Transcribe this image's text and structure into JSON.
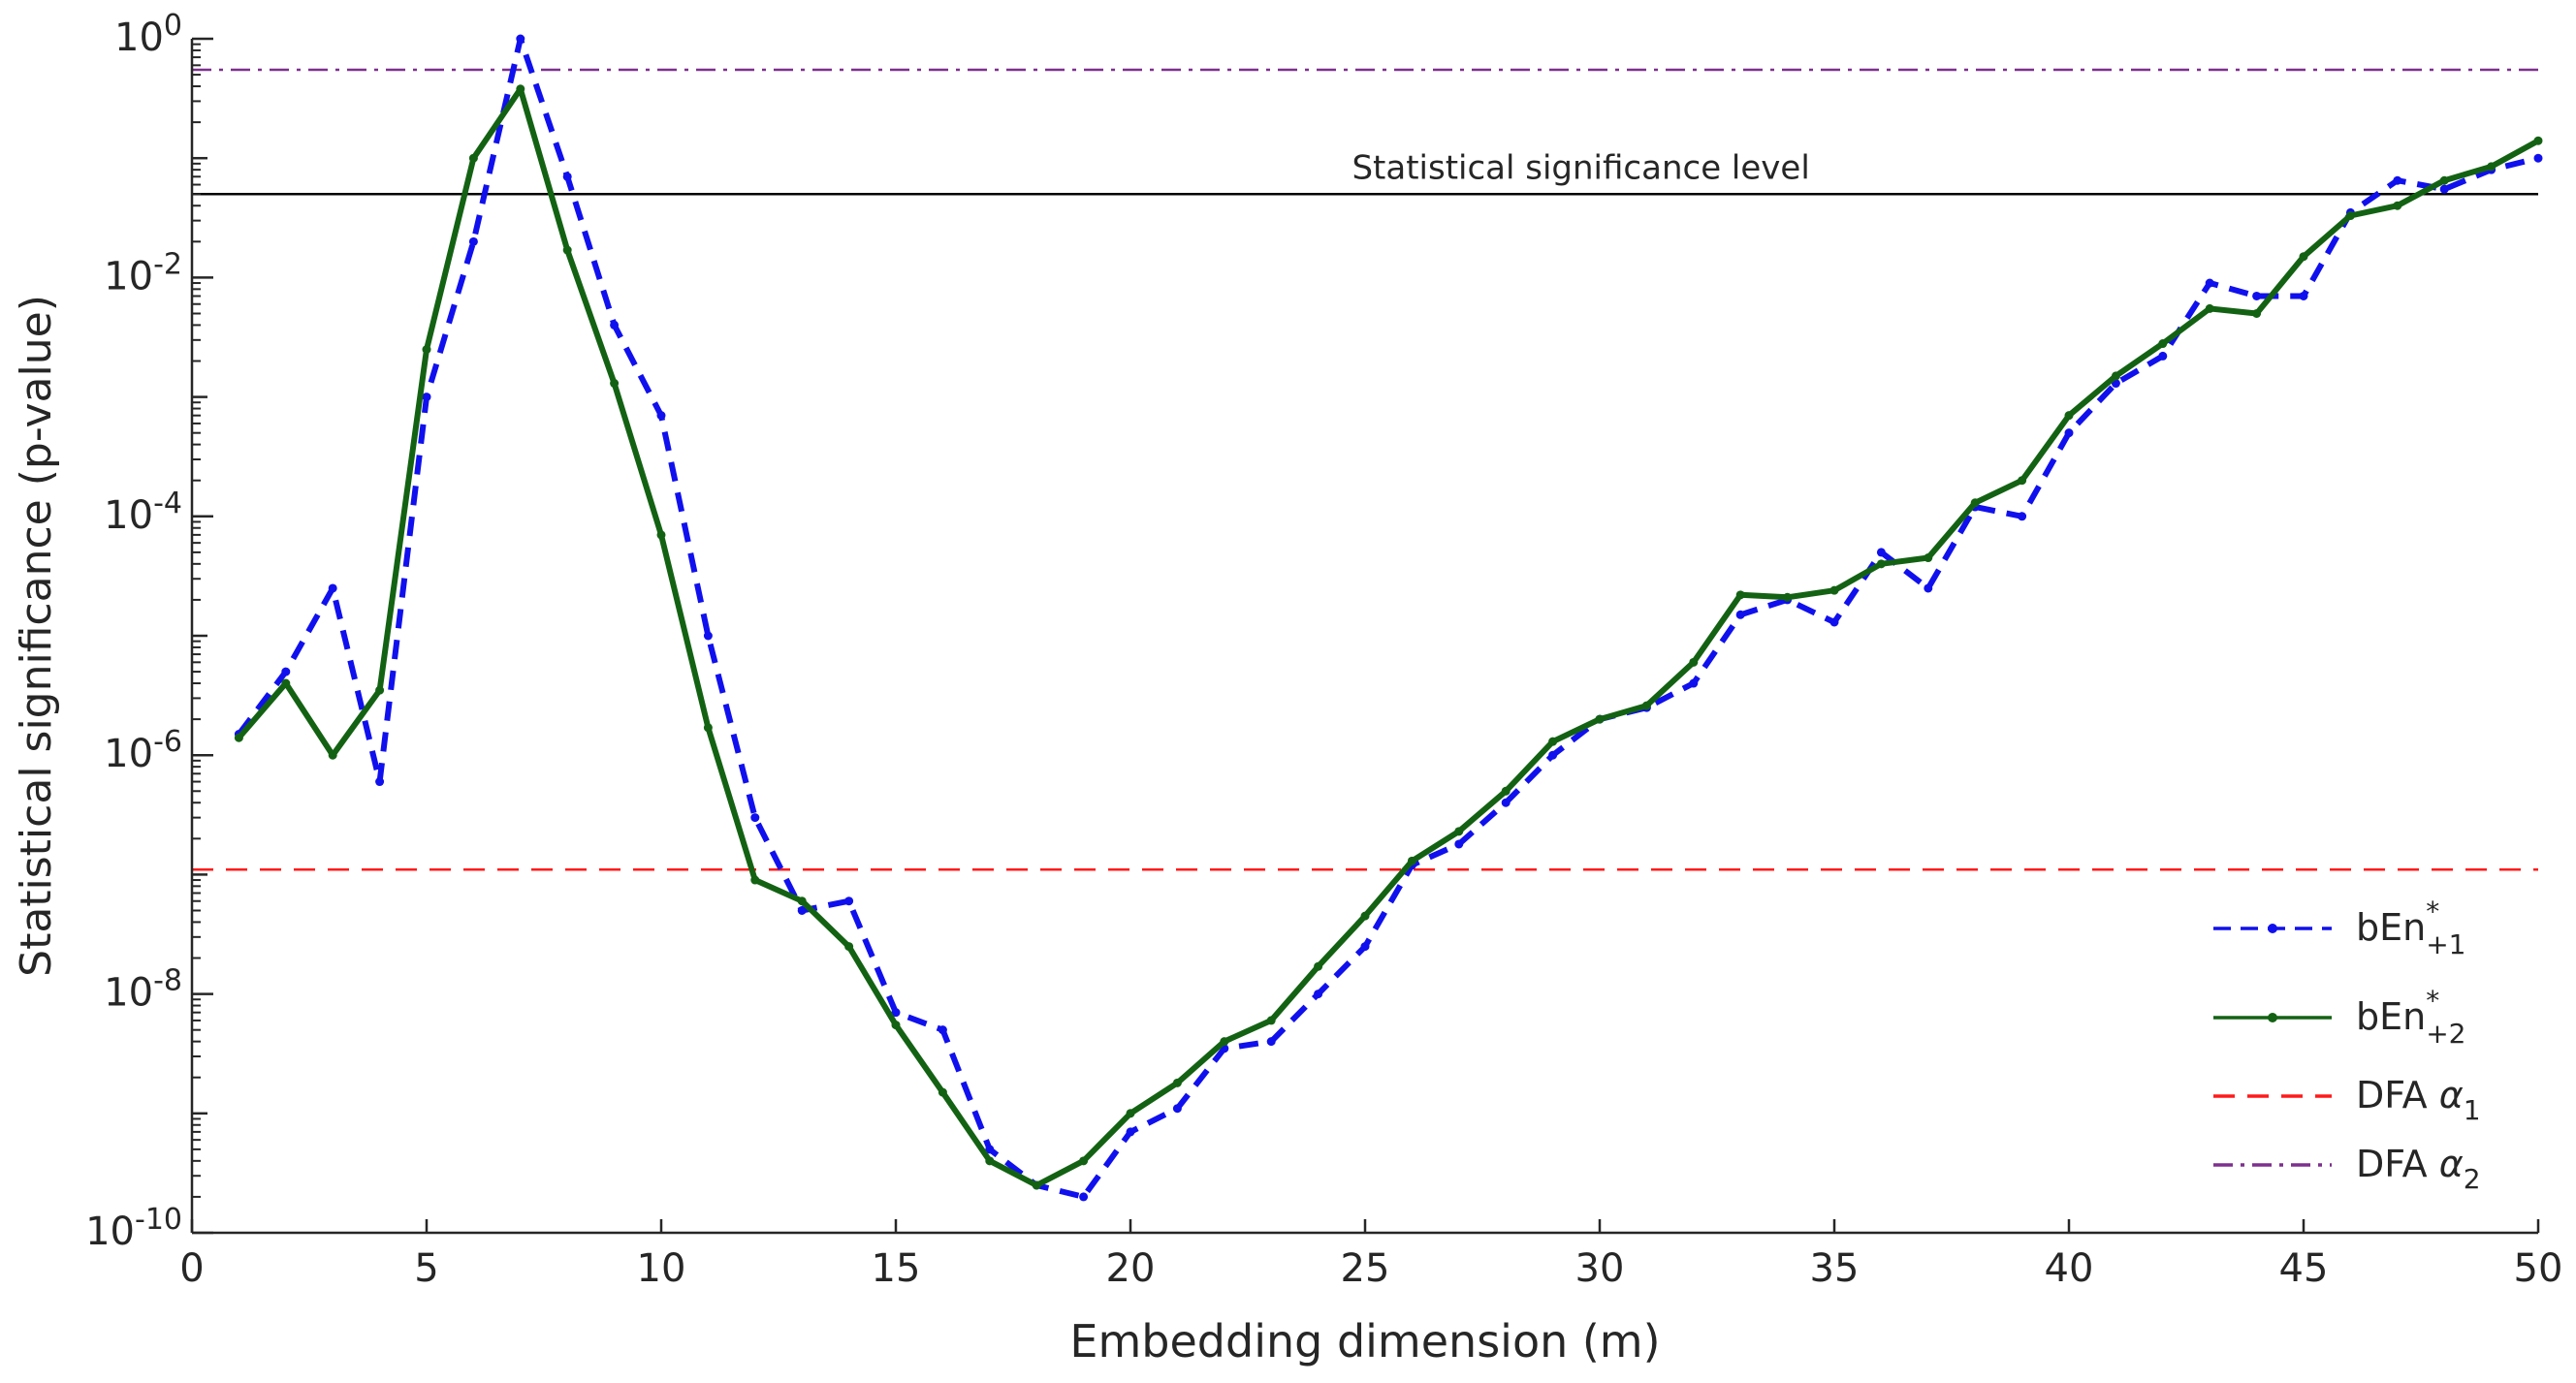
{
  "chart_data": {
    "type": "line",
    "yscale": "log",
    "title": "",
    "xlabel": "Embedding dimension (m)",
    "ylabel": "Statistical significance (p-value)",
    "xlim": [
      0,
      50
    ],
    "ylim": [
      1e-10,
      1
    ],
    "xticks": [
      0,
      5,
      10,
      15,
      20,
      25,
      30,
      35,
      40,
      45,
      50
    ],
    "xtick_labels": [
      "0",
      "5",
      "10",
      "15",
      "20",
      "25",
      "30",
      "35",
      "40",
      "45",
      "50"
    ],
    "yticks": [
      {
        "value": 1e-10,
        "base": "10",
        "exp": "-10"
      },
      {
        "value": 1e-08,
        "base": "10",
        "exp": "-8"
      },
      {
        "value": 1e-06,
        "base": "10",
        "exp": "-6"
      },
      {
        "value": 0.0001,
        "base": "10",
        "exp": "-4"
      },
      {
        "value": 0.01,
        "base": "10",
        "exp": "-2"
      },
      {
        "value": 1,
        "base": "10",
        "exp": "0"
      }
    ],
    "annotation": "Statistical significance level",
    "reference_lines": [
      {
        "name": "significance",
        "value": 0.05,
        "color": "#000000",
        "style": "solid"
      }
    ],
    "series": [
      {
        "name": "bEn*+1",
        "legend": {
          "main": "bEn",
          "sup": "*",
          "sub": "+1"
        },
        "color": "#1010ee",
        "style": "dashed",
        "marker": true,
        "x": [
          1,
          2,
          3,
          4,
          5,
          6,
          7,
          8,
          9,
          10,
          11,
          12,
          13,
          14,
          15,
          16,
          17,
          18,
          19,
          20,
          21,
          22,
          23,
          24,
          25,
          26,
          27,
          28,
          29,
          30,
          31,
          32,
          33,
          34,
          35,
          36,
          37,
          38,
          39,
          40,
          41,
          42,
          43,
          44,
          45,
          46,
          47,
          48,
          49,
          50
        ],
        "values": [
          1.5e-06,
          5e-06,
          2.5e-05,
          6e-07,
          0.001,
          0.02,
          1.0,
          0.07,
          0.004,
          0.0007,
          1e-05,
          3e-07,
          5e-08,
          6e-08,
          7e-09,
          5e-09,
          5e-10,
          2.5e-10,
          2e-10,
          7e-10,
          1.1e-09,
          3.5e-09,
          4e-09,
          1e-08,
          2.5e-08,
          1.2e-07,
          1.8e-07,
          4e-07,
          1e-06,
          2e-06,
          2.5e-06,
          4e-06,
          1.5e-05,
          2e-05,
          1.3e-05,
          5e-05,
          2.5e-05,
          0.00012,
          0.0001,
          0.0005,
          0.0013,
          0.0022,
          0.009,
          0.007,
          0.007,
          0.035,
          0.065,
          0.055,
          0.08,
          0.1
        ]
      },
      {
        "name": "bEn*+2",
        "legend": {
          "main": "bEn",
          "sup": "*",
          "sub": "+2"
        },
        "color": "#136213",
        "style": "solid",
        "marker": true,
        "x": [
          1,
          2,
          3,
          4,
          5,
          6,
          7,
          8,
          9,
          10,
          11,
          12,
          13,
          14,
          15,
          16,
          17,
          18,
          19,
          20,
          21,
          22,
          23,
          24,
          25,
          26,
          27,
          28,
          29,
          30,
          31,
          32,
          33,
          34,
          35,
          36,
          37,
          38,
          39,
          40,
          41,
          42,
          43,
          44,
          45,
          46,
          47,
          48,
          49,
          50
        ],
        "values": [
          1.4e-06,
          4e-06,
          1e-06,
          3.5e-06,
          0.0025,
          0.1,
          0.38,
          0.017,
          0.0013,
          7e-05,
          1.7e-06,
          9e-08,
          6e-08,
          2.5e-08,
          5.5e-09,
          1.5e-09,
          4e-10,
          2.5e-10,
          4e-10,
          1e-09,
          1.8e-09,
          4e-09,
          6e-09,
          1.7e-08,
          4.5e-08,
          1.3e-07,
          2.3e-07,
          5e-07,
          1.3e-06,
          2e-06,
          2.6e-06,
          6e-06,
          2.2e-05,
          2.1e-05,
          2.4e-05,
          4e-05,
          4.5e-05,
          0.00013,
          0.0002,
          0.0007,
          0.0015,
          0.0028,
          0.0055,
          0.005,
          0.015,
          0.033,
          0.04,
          0.065,
          0.085,
          0.14
        ]
      },
      {
        "name": "DFA α1",
        "legend": {
          "main": "DFA ",
          "greek": "α",
          "sub": "1"
        },
        "color": "#ff1a1a",
        "style": "dashed",
        "marker": false,
        "constant": 1.1e-07
      },
      {
        "name": "DFA α2",
        "legend": {
          "main": "DFA ",
          "greek": "α",
          "sub": "2"
        },
        "color": "#7e2f8e",
        "style": "dashdot",
        "marker": false,
        "constant": 0.55
      }
    ],
    "legend_position": "lower-right",
    "grid": false
  }
}
